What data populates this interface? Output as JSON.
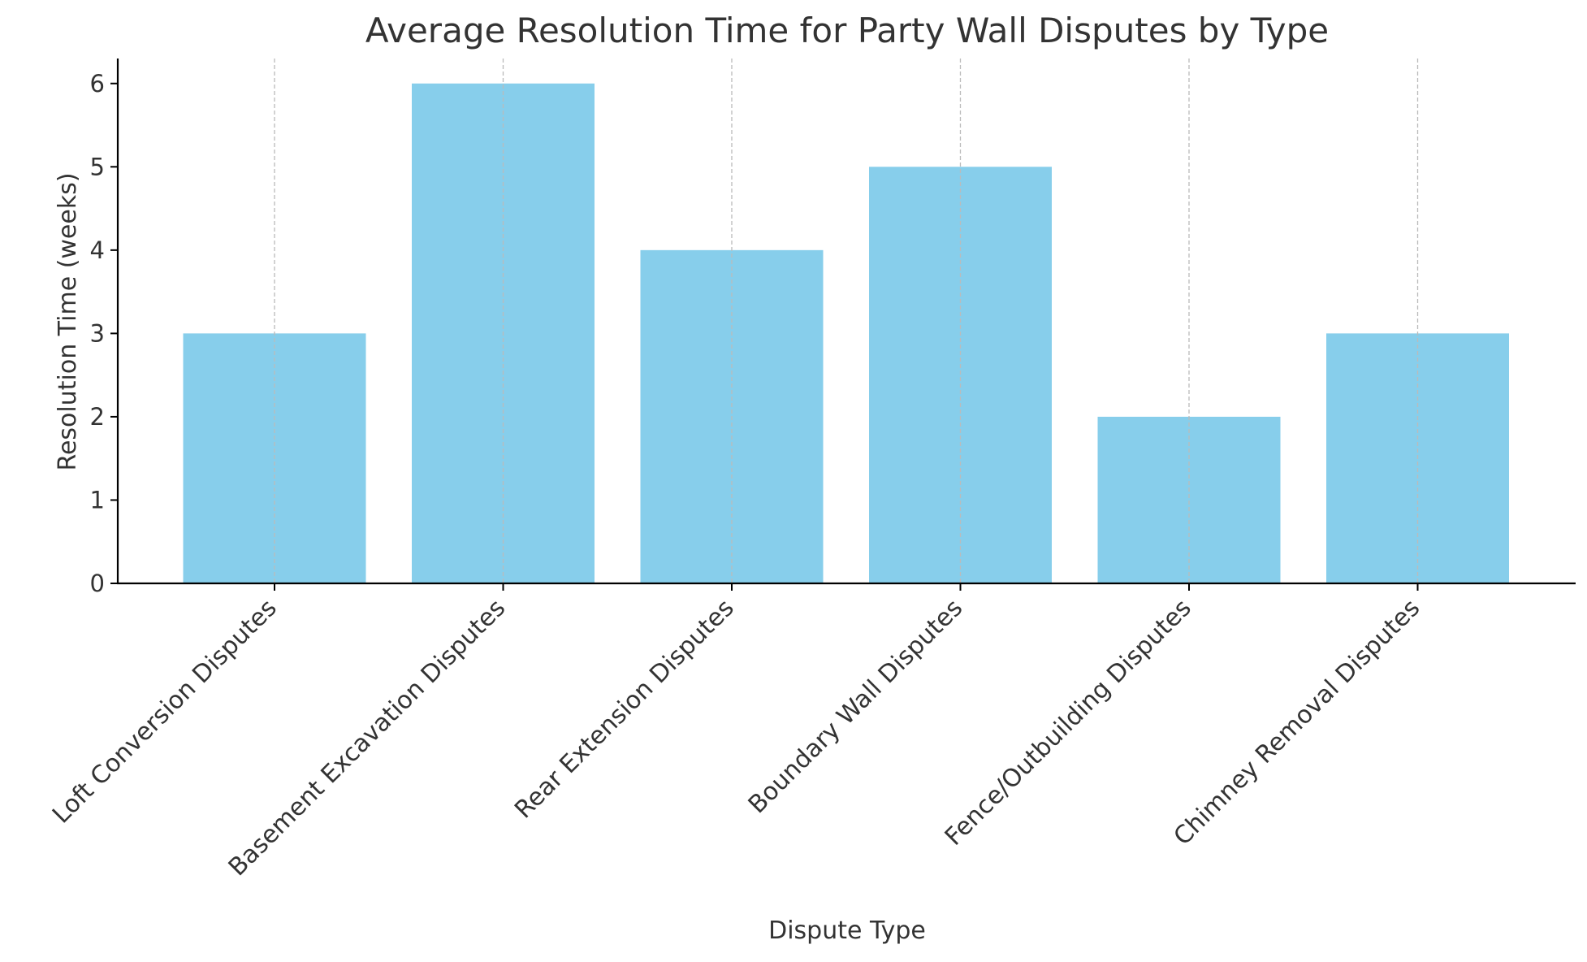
{
  "chart_data": {
    "type": "bar",
    "title": "Average Resolution Time for Party Wall Disputes by Type",
    "xlabel": "Dispute Type",
    "ylabel": "Resolution Time (weeks)",
    "categories": [
      "Loft Conversion Disputes",
      "Basement Excavation Disputes",
      "Rear Extension Disputes",
      "Boundary Wall Disputes",
      "Fence/Outbuilding Disputes",
      "Chimney Removal Disputes"
    ],
    "values": [
      3,
      6,
      4,
      5,
      2,
      3
    ],
    "ylim": [
      0,
      6.3
    ],
    "yticks": [
      0,
      1,
      2,
      3,
      4,
      5,
      6
    ],
    "grid": "vertical dashed",
    "bar_color": "#87CEEB",
    "grid_color": "#bbbbbb",
    "axis_color": "#000000",
    "text_color": "#333333"
  }
}
